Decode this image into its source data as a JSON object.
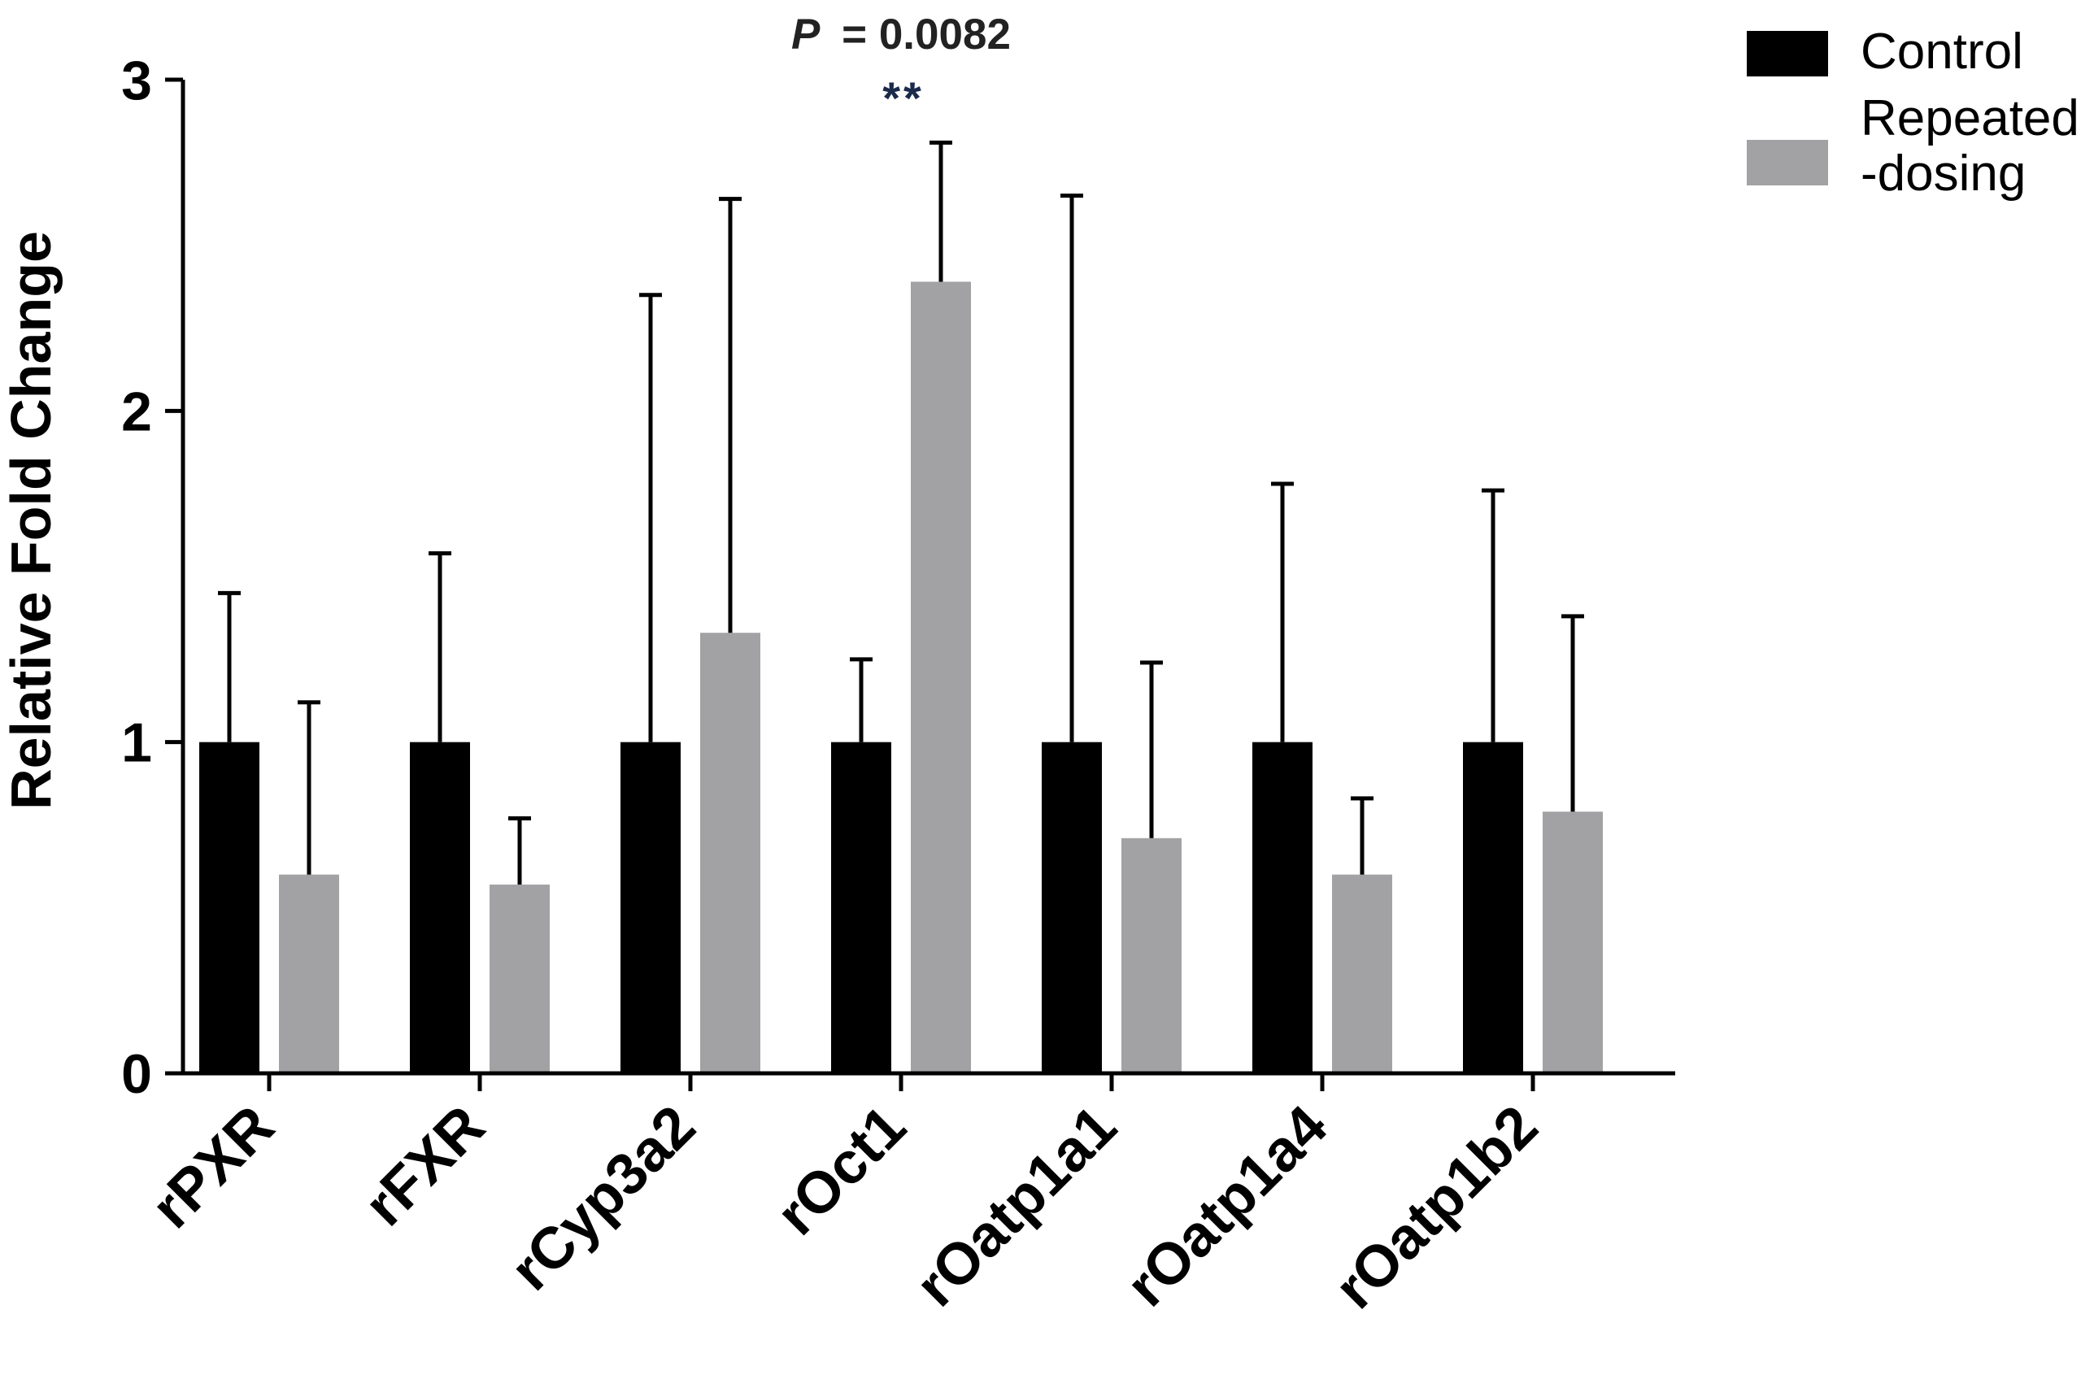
{
  "chart_data": {
    "type": "bar",
    "title": "",
    "xlabel": "",
    "ylabel": "Relative Fold Change",
    "ylim": [
      0,
      3
    ],
    "yticks": [
      "0",
      "1",
      "2",
      "3"
    ],
    "categories": [
      "rPXR",
      "rFXR",
      "rCyp3a2",
      "rOct1",
      "rOatp1a1",
      "rOatp1a4",
      "rOatp1b2"
    ],
    "series": [
      {
        "name": "Control",
        "color": "#000000",
        "values": [
          1.0,
          1.0,
          1.0,
          1.0,
          1.0,
          1.0,
          1.0
        ],
        "error_upper": [
          0.45,
          0.57,
          1.35,
          0.25,
          1.65,
          0.78,
          0.76
        ]
      },
      {
        "name": "Repeated -dosing",
        "legend_lines": [
          "Repeated",
          "-dosing"
        ],
        "color": "#a2a2a4",
        "values": [
          0.6,
          0.57,
          1.33,
          2.39,
          0.71,
          0.6,
          0.79
        ],
        "error_upper": [
          0.52,
          0.2,
          1.31,
          0.42,
          0.53,
          0.23,
          0.59
        ]
      }
    ],
    "annotation": {
      "category": "rOct1",
      "p_label": "P",
      "p_value": "= 0.0082",
      "stars": "**"
    },
    "grid": false,
    "legend_position": "top-right"
  }
}
